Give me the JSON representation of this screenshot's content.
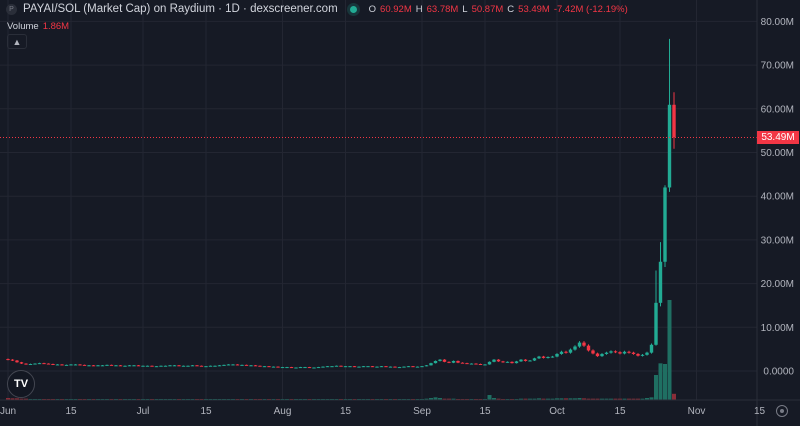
{
  "header": {
    "symbol_icon": "P",
    "title": "PAYAI/SOL (Market Cap) on Raydium · 1D · dexscreener.com",
    "status_color": "#22ab94",
    "o_label": "O",
    "o_value": "60.92M",
    "h_label": "H",
    "h_value": "63.78M",
    "l_label": "L",
    "l_value": "50.87M",
    "c_label": "C",
    "c_value": "53.49M",
    "change": "-7.42M (-12.19%)"
  },
  "volume_legend": {
    "label": "Volume",
    "value": "1.86M"
  },
  "collapse_icon": "chevron-up-icon",
  "logo_text": "TV",
  "last_price_label": "53.49M",
  "colors": {
    "up": "#22ab94",
    "down": "#f23645",
    "vol_up": "#1f6f62",
    "vol_down": "#8a2d38",
    "grid": "#232632",
    "background": "#161a25"
  },
  "chart_data": {
    "type": "candlestick",
    "title": "PAYAI/SOL (Market Cap) on Raydium · 1D",
    "unit": "M",
    "start_date": "Jun 1",
    "ylim": [
      -6,
      82
    ],
    "y_ticks": [
      {
        "value": 80,
        "label": "80.00M"
      },
      {
        "value": 70,
        "label": "70.00M"
      },
      {
        "value": 60,
        "label": "60.00M"
      },
      {
        "value": 50,
        "label": "50.00M"
      },
      {
        "value": 40,
        "label": "40.00M"
      },
      {
        "value": 30,
        "label": "30.00M"
      },
      {
        "value": 20,
        "label": "20.00M"
      },
      {
        "value": 10,
        "label": "10.00M"
      },
      {
        "value": 0,
        "label": "0.0000"
      }
    ],
    "x_ticks": [
      {
        "day": 0,
        "label": "Jun"
      },
      {
        "day": 14,
        "label": "15"
      },
      {
        "day": 30,
        "label": "Jul"
      },
      {
        "day": 44,
        "label": "15"
      },
      {
        "day": 61,
        "label": "Aug"
      },
      {
        "day": 75,
        "label": "15"
      },
      {
        "day": 92,
        "label": "Sep"
      },
      {
        "day": 106,
        "label": "15"
      },
      {
        "day": 122,
        "label": "Oct"
      },
      {
        "day": 136,
        "label": "15"
      },
      {
        "day": 153,
        "label": "Nov"
      },
      {
        "day": 167,
        "label": "15"
      }
    ],
    "closes": [
      2.6,
      2.4,
      2.0,
      1.7,
      1.5,
      1.6,
      1.7,
      1.8,
      1.7,
      1.6,
      1.5,
      1.5,
      1.4,
      1.4,
      1.5,
      1.5,
      1.4,
      1.3,
      1.3,
      1.2,
      1.3,
      1.3,
      1.4,
      1.3,
      1.3,
      1.2,
      1.2,
      1.3,
      1.3,
      1.2,
      1.2,
      1.2,
      1.1,
      1.1,
      1.2,
      1.2,
      1.3,
      1.3,
      1.2,
      1.2,
      1.2,
      1.3,
      1.2,
      1.1,
      1.1,
      1.2,
      1.2,
      1.3,
      1.4,
      1.5,
      1.5,
      1.4,
      1.4,
      1.3,
      1.3,
      1.2,
      1.1,
      1.1,
      1.0,
      1.0,
      0.9,
      0.9,
      0.9,
      0.8,
      0.8,
      0.9,
      0.9,
      0.8,
      0.8,
      0.9,
      1.0,
      1.1,
      1.1,
      1.2,
      1.1,
      1.1,
      1.1,
      1.0,
      1.0,
      1.1,
      1.1,
      1.0,
      1.0,
      1.1,
      1.0,
      1.0,
      0.9,
      0.9,
      1.0,
      1.1,
      1.0,
      1.0,
      1.1,
      1.3,
      1.8,
      2.3,
      2.6,
      2.1,
      1.9,
      2.3,
      1.9,
      1.8,
      1.7,
      1.7,
      1.6,
      1.5,
      1.5,
      2.1,
      2.6,
      2.2,
      2.0,
      2.1,
      1.8,
      2.2,
      2.6,
      2.3,
      2.4,
      2.9,
      3.3,
      3.0,
      3.2,
      3.3,
      3.9,
      4.4,
      4.2,
      4.9,
      5.6,
      6.5,
      5.8,
      4.7,
      4.0,
      3.4,
      3.9,
      4.2,
      4.5,
      4.3,
      4.0,
      4.4,
      4.2,
      3.9,
      3.5,
      3.7,
      4.2,
      6.0
    ],
    "spike_candles_ohlc": [
      [
        6.0,
        23.0,
        5.8,
        15.6
      ],
      [
        15.6,
        29.5,
        14.8,
        25.0
      ],
      [
        25.0,
        42.5,
        23.8,
        42.0
      ],
      [
        42.0,
        76.0,
        41.0,
        60.92
      ],
      [
        60.92,
        63.78,
        50.87,
        53.49
      ]
    ],
    "volume_max": 30,
    "volumes": [
      0.6,
      0.5,
      0.5,
      0.4,
      0.4,
      0.3,
      0.3,
      0.3,
      0.3,
      0.3,
      0.3,
      0.3,
      0.3,
      0.3,
      0.3,
      0.3,
      0.3,
      0.3,
      0.3,
      0.3,
      0.3,
      0.3,
      0.3,
      0.3,
      0.3,
      0.3,
      0.3,
      0.3,
      0.3,
      0.3,
      0.3,
      0.3,
      0.3,
      0.3,
      0.3,
      0.3,
      0.3,
      0.3,
      0.3,
      0.3,
      0.3,
      0.3,
      0.3,
      0.3,
      0.3,
      0.3,
      0.3,
      0.3,
      0.3,
      0.3,
      0.3,
      0.3,
      0.3,
      0.3,
      0.3,
      0.3,
      0.3,
      0.3,
      0.3,
      0.3,
      0.3,
      0.3,
      0.3,
      0.3,
      0.3,
      0.3,
      0.3,
      0.3,
      0.3,
      0.3,
      0.3,
      0.3,
      0.3,
      0.3,
      0.3,
      0.3,
      0.3,
      0.3,
      0.3,
      0.3,
      0.3,
      0.3,
      0.3,
      0.3,
      0.3,
      0.3,
      0.3,
      0.3,
      0.3,
      0.3,
      0.3,
      0.3,
      0.3,
      0.4,
      0.6,
      0.8,
      0.6,
      0.4,
      0.4,
      0.4,
      0.3,
      0.3,
      0.3,
      0.3,
      0.3,
      0.3,
      0.3,
      1.5,
      0.6,
      0.4,
      0.3,
      0.3,
      0.3,
      0.3,
      0.4,
      0.4,
      0.4,
      0.4,
      0.5,
      0.4,
      0.4,
      0.4,
      0.5,
      0.5,
      0.5,
      0.5,
      0.5,
      0.6,
      0.5,
      0.4,
      0.4,
      0.4,
      0.4,
      0.4,
      0.4,
      0.4,
      0.4,
      0.4,
      0.4,
      0.4,
      0.4,
      0.4,
      0.6,
      0.8,
      7.5,
      11.0,
      10.8,
      30.0,
      1.86
    ]
  }
}
